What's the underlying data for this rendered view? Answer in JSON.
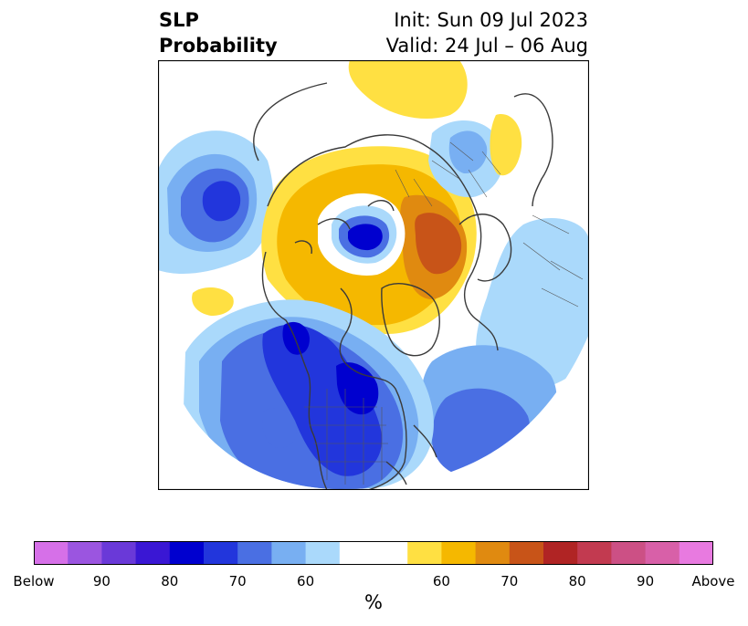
{
  "title": {
    "variable": "SLP",
    "quantity": "Probability",
    "init": "Init: Sun 09 Jul 2023",
    "valid": "Valid: 24 Jul – 06 Aug"
  },
  "colorbar": {
    "unit": "%",
    "colors": [
      "#d670e8",
      "#9b55e0",
      "#6a39d8",
      "#3a17d4",
      "#0000cf",
      "#2236dc",
      "#4a6fe3",
      "#78aff2",
      "#aad9fb",
      "#ffffff",
      "#ffffff",
      "#ffe042",
      "#f5b800",
      "#e08a10",
      "#c85418",
      "#b02424",
      "#c23a50",
      "#cc5085",
      "#d860a8",
      "#e87ae0"
    ],
    "ticks": [
      {
        "label": "Below",
        "index": 0
      },
      {
        "label": "90",
        "index": 2
      },
      {
        "label": "80",
        "index": 4
      },
      {
        "label": "70",
        "index": 6
      },
      {
        "label": "60",
        "index": 8
      },
      {
        "label": "60",
        "index": 12
      },
      {
        "label": "70",
        "index": 14
      },
      {
        "label": "80",
        "index": 16
      },
      {
        "label": "90",
        "index": 18
      },
      {
        "label": "Above",
        "index": 20
      }
    ]
  },
  "palette": {
    "blue_light": "#aad9fb",
    "blue_60": "#78aff2",
    "blue_70": "#4a6fe3",
    "blue_80": "#2236dc",
    "blue_90": "#0000cf",
    "yellow": "#ffe042",
    "gold": "#f5b800",
    "orange": "#e08a10",
    "brown": "#c85418",
    "coast": "#3a3a3a"
  }
}
